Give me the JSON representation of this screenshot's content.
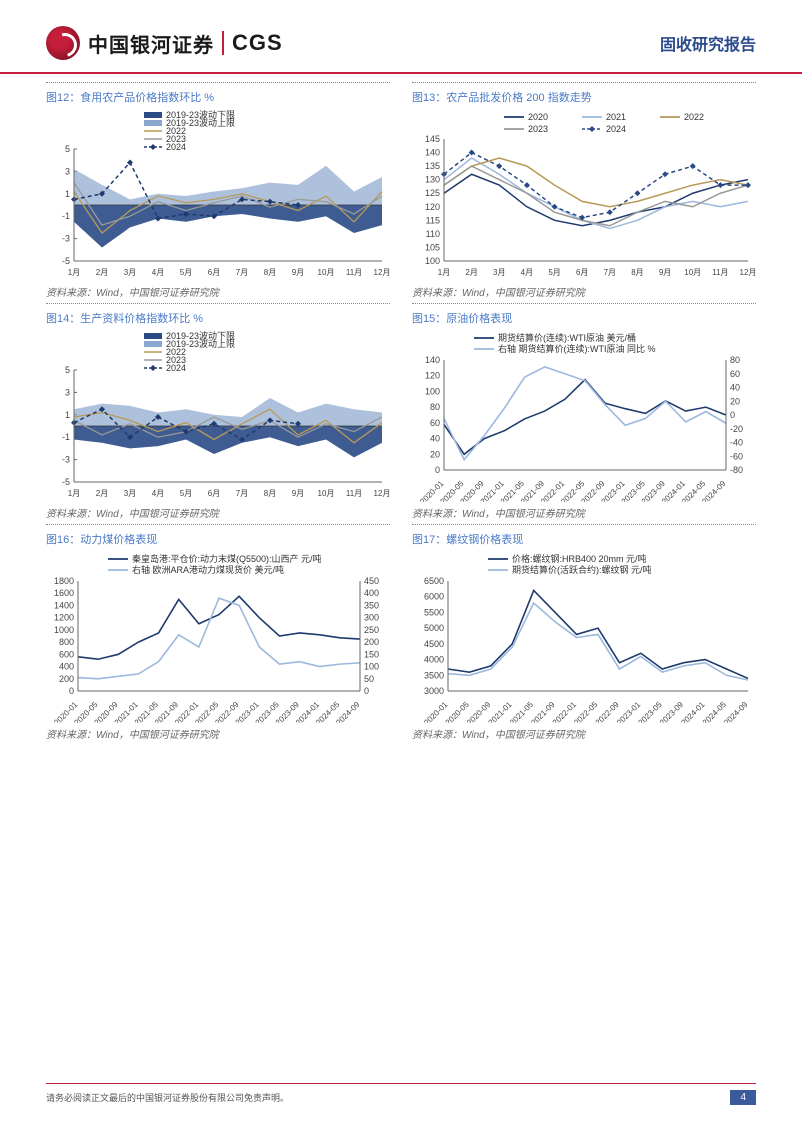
{
  "header": {
    "logo_cn": "中国银河证券",
    "logo_en": "CGS",
    "doc_type": "固收研究报告"
  },
  "footer": {
    "disclaimer": "请务必阅读正文最后的中国银河证券股份有限公司免责声明。",
    "page": "4"
  },
  "source": "资料来源：Wind，中国银河证券研究院",
  "colors": {
    "dark_navy": "#1f3a6e",
    "mid_blue": "#6a8fc7",
    "light_blue": "#9db8dd",
    "pale_blue": "#b8cbe2",
    "gold": "#b89a56",
    "gray": "#999999",
    "axis": "#666666",
    "grid": "#d8d8d8",
    "fill_band": "#8aa7cf",
    "fill_dark": "#2a4a85"
  },
  "chart12": {
    "title": "图12：食用农产品价格指数环比 %",
    "type": "line-band",
    "legend": [
      "2019-23波动下限",
      "2019-23波动上限",
      "2022",
      "2023",
      "2024"
    ],
    "legend_colors": [
      "#2a4a85",
      "#8aa7cf",
      "#b89a56",
      "#999999",
      "#1f3a6e"
    ],
    "legend_styles": [
      "fill",
      "fill",
      "line",
      "line",
      "dash-marker"
    ],
    "ylim": [
      -5,
      5
    ],
    "yticks": [
      -5,
      -3,
      -1,
      1,
      3,
      5
    ],
    "xticks": [
      "1月",
      "2月",
      "3月",
      "4月",
      "5月",
      "6月",
      "7月",
      "8月",
      "9月",
      "10月",
      "11月",
      "12月"
    ],
    "band_upper": [
      3.2,
      1.8,
      0.5,
      1.0,
      0.8,
      1.2,
      1.5,
      2.0,
      1.8,
      3.5,
      1.2,
      2.5
    ],
    "band_lower": [
      -1.5,
      -3.8,
      -2.0,
      -1.2,
      -1.5,
      -1.0,
      -0.8,
      -1.2,
      -1.5,
      -1.0,
      -2.5,
      -1.8
    ],
    "s2022": [
      1.2,
      -2.5,
      -0.5,
      0.8,
      0.2,
      0.5,
      1.0,
      0.3,
      -0.5,
      0.8,
      -1.5,
      1.2
    ],
    "s2023": [
      2.0,
      -1.8,
      -1.0,
      0.3,
      -0.5,
      0.2,
      0.8,
      -0.2,
      0.5,
      0.3,
      -0.8,
      0.8
    ],
    "s2024": [
      0.5,
      1.0,
      3.8,
      -1.2,
      -0.8,
      -1.0,
      0.5,
      0.3,
      0.0,
      0.0,
      0.0,
      0.0
    ],
    "s2024_len": 9
  },
  "chart13": {
    "title": "图13：农产品批发价格 200 指数走势",
    "type": "line",
    "legend": [
      "2020",
      "2021",
      "2022",
      "2023",
      "2024"
    ],
    "legend_colors": [
      "#1f3a6e",
      "#9db8dd",
      "#b89a56",
      "#999999",
      "#2a4a85"
    ],
    "legend_styles": [
      "line",
      "line",
      "line",
      "line",
      "dash-marker"
    ],
    "ylim": [
      100,
      145
    ],
    "yticks": [
      100,
      105,
      110,
      115,
      120,
      125,
      130,
      135,
      140,
      145
    ],
    "xticks": [
      "1月",
      "2月",
      "3月",
      "4月",
      "5月",
      "6月",
      "7月",
      "8月",
      "9月",
      "10月",
      "11月",
      "12月"
    ],
    "s2020": [
      125,
      132,
      128,
      120,
      115,
      113,
      115,
      118,
      120,
      125,
      128,
      130
    ],
    "s2021": [
      130,
      138,
      132,
      125,
      120,
      115,
      112,
      115,
      120,
      122,
      120,
      122
    ],
    "s2022": [
      128,
      135,
      138,
      135,
      128,
      122,
      120,
      122,
      125,
      128,
      130,
      128
    ],
    "s2023": [
      128,
      135,
      130,
      125,
      118,
      115,
      113,
      118,
      122,
      120,
      125,
      128
    ],
    "s2024": [
      132,
      140,
      135,
      128,
      120,
      116,
      118,
      125,
      132,
      135,
      128,
      128
    ],
    "s2024_len": 12
  },
  "chart14": {
    "title": "图14：生产资料价格指数环比 %",
    "type": "line-band",
    "legend": [
      "2019-23波动下限",
      "2019-23波动上限",
      "2022",
      "2023",
      "2024"
    ],
    "legend_colors": [
      "#2a4a85",
      "#8aa7cf",
      "#b89a56",
      "#999999",
      "#1f3a6e"
    ],
    "legend_styles": [
      "fill",
      "fill",
      "line",
      "line",
      "dash-marker"
    ],
    "ylim": [
      -5,
      5
    ],
    "yticks": [
      -5,
      -3,
      -1,
      1,
      3,
      5
    ],
    "xticks": [
      "1月",
      "2月",
      "3月",
      "4月",
      "5月",
      "6月",
      "7月",
      "8月",
      "9月",
      "10月",
      "11月",
      "12月"
    ],
    "band_upper": [
      1.5,
      2.0,
      1.8,
      1.2,
      1.5,
      1.0,
      0.8,
      2.5,
      1.2,
      2.0,
      1.5,
      1.2
    ],
    "band_lower": [
      -1.2,
      -1.5,
      -2.0,
      -1.8,
      -1.2,
      -2.5,
      -1.5,
      -1.0,
      -1.8,
      -1.2,
      -2.8,
      -1.5
    ],
    "s2022": [
      0.8,
      1.2,
      0.5,
      -0.5,
      0.3,
      -1.2,
      0.2,
      1.5,
      -0.8,
      0.5,
      -1.5,
      0.3
    ],
    "s2023": [
      0.5,
      -0.8,
      0.2,
      -1.0,
      -0.5,
      0.8,
      -0.3,
      0.5,
      -1.0,
      0.2,
      -0.5,
      0.8
    ],
    "s2024": [
      0.3,
      1.5,
      -1.0,
      0.8,
      -0.5,
      0.2,
      -1.2,
      0.5,
      0.2,
      0.0,
      0.0,
      0.0
    ],
    "s2024_len": 9
  },
  "chart15": {
    "title": "图15：原油价格表现",
    "type": "dual-axis-line",
    "legend": [
      "期货结算价(连续):WTI原油 美元/桶",
      "右轴 期货结算价(连续):WTI原油 同比 %"
    ],
    "legend_colors": [
      "#1f3a6e",
      "#9db8dd"
    ],
    "y1lim": [
      0,
      140
    ],
    "y1ticks": [
      0,
      20,
      40,
      60,
      80,
      100,
      120,
      140
    ],
    "y2lim": [
      -80,
      80
    ],
    "y2ticks": [
      -80,
      -60,
      -40,
      -20,
      0,
      20,
      40,
      60,
      80
    ],
    "xticks": [
      "2020-01",
      "2020-05",
      "2020-09",
      "2021-01",
      "2021-05",
      "2021-09",
      "2022-01",
      "2022-05",
      "2022-09",
      "2023-01",
      "2023-05",
      "2023-09",
      "2024-01",
      "2024-05",
      "2024-09"
    ],
    "s1": [
      58,
      20,
      40,
      50,
      65,
      75,
      90,
      115,
      85,
      78,
      72,
      88,
      75,
      80,
      70
    ],
    "s2": [
      -5,
      -65,
      -30,
      10,
      55,
      70,
      60,
      50,
      15,
      -15,
      -5,
      20,
      -10,
      5,
      -12
    ]
  },
  "chart16": {
    "title": "图16：动力煤价格表现",
    "type": "dual-axis-line",
    "legend": [
      "秦皇岛港:平仓价:动力末煤(Q5500):山西产 元/吨",
      "右轴 欧洲ARA港动力煤现货价 美元/吨"
    ],
    "legend_colors": [
      "#1f3a6e",
      "#9db8dd"
    ],
    "y1lim": [
      0,
      1800
    ],
    "y1ticks": [
      0,
      200,
      400,
      600,
      800,
      1000,
      1200,
      1400,
      1600,
      1800
    ],
    "y2lim": [
      0,
      450
    ],
    "y2ticks": [
      0,
      50,
      100,
      150,
      200,
      250,
      300,
      350,
      400,
      450
    ],
    "xticks": [
      "2020-01",
      "2020-05",
      "2020-09",
      "2021-01",
      "2021-05",
      "2021-09",
      "2022-01",
      "2022-05",
      "2022-09",
      "2023-01",
      "2023-05",
      "2023-09",
      "2024-01",
      "2024-05",
      "2024-09"
    ],
    "s1": [
      560,
      520,
      600,
      800,
      950,
      1500,
      1100,
      1250,
      1550,
      1200,
      900,
      950,
      920,
      870,
      850
    ],
    "s2": [
      55,
      50,
      60,
      70,
      120,
      230,
      180,
      380,
      350,
      180,
      110,
      120,
      100,
      110,
      115
    ]
  },
  "chart17": {
    "title": "图17：螺纹钢价格表现",
    "type": "line",
    "legend": [
      "价格:螺纹钢:HRB400 20mm 元/吨",
      "期货结算价(活跃合约):螺纹钢 元/吨"
    ],
    "legend_colors": [
      "#1f3a6e",
      "#9db8dd"
    ],
    "ylim": [
      3000,
      6500
    ],
    "yticks": [
      3000,
      3500,
      4000,
      4500,
      5000,
      5500,
      6000,
      6500
    ],
    "xticks": [
      "2020-01",
      "2020-05",
      "2020-09",
      "2021-01",
      "2021-05",
      "2021-09",
      "2022-01",
      "2022-05",
      "2022-09",
      "2023-01",
      "2023-05",
      "2023-09",
      "2024-01",
      "2024-05",
      "2024-09"
    ],
    "s1": [
      3700,
      3600,
      3800,
      4500,
      6200,
      5500,
      4800,
      5000,
      3900,
      4200,
      3700,
      3900,
      4000,
      3700,
      3400
    ],
    "s2": [
      3550,
      3500,
      3700,
      4400,
      5800,
      5200,
      4700,
      4800,
      3700,
      4100,
      3600,
      3800,
      3900,
      3500,
      3350
    ]
  }
}
